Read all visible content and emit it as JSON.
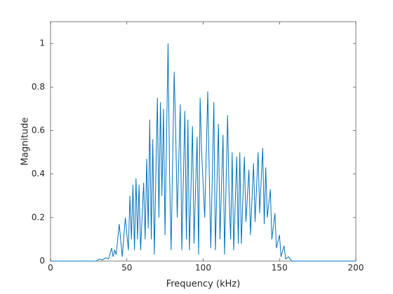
{
  "chart_data": {
    "type": "line",
    "xlabel": "Frequency (kHz)",
    "ylabel": "Magnitude",
    "x": [
      0,
      30,
      32,
      34,
      36,
      38,
      40,
      41,
      42,
      43,
      44,
      45,
      47,
      49,
      51,
      52,
      53,
      54,
      55,
      56,
      57,
      58,
      59,
      61,
      62,
      63,
      64,
      65,
      66,
      67,
      68,
      70,
      71,
      72,
      73,
      74,
      75,
      77,
      78,
      79,
      81,
      82,
      83,
      85,
      86,
      88,
      89,
      90,
      91,
      93,
      94,
      96,
      97,
      98,
      99,
      101,
      103,
      104,
      105,
      107,
      108,
      110,
      111,
      113,
      114,
      116,
      117,
      118,
      119,
      120,
      122,
      123,
      124,
      125,
      127,
      128,
      130,
      131,
      133,
      134,
      136,
      137,
      139,
      140,
      141,
      142,
      144,
      145,
      147,
      148,
      150,
      151,
      153,
      154,
      156,
      158,
      160,
      200
    ],
    "series": [
      {
        "color": "#0072bd",
        "values": [
          0,
          0,
          0.01,
          0.005,
          0.015,
          0.01,
          0.06,
          0.02,
          0.05,
          0.03,
          0.1,
          0.17,
          0.02,
          0.2,
          0.05,
          0.3,
          0.1,
          0.35,
          0.05,
          0.38,
          0.1,
          0.35,
          0.05,
          0.36,
          0.1,
          0.47,
          0.15,
          0.65,
          0.1,
          0.56,
          0.03,
          0.75,
          0.2,
          0.73,
          0.3,
          0.7,
          0.12,
          1.0,
          0.4,
          0.05,
          0.87,
          0.6,
          0.2,
          0.72,
          0.05,
          0.69,
          0.1,
          0.65,
          0.05,
          0.62,
          0.08,
          0.57,
          0.03,
          0.75,
          0.5,
          0.2,
          0.78,
          0.4,
          0.06,
          0.73,
          0.05,
          0.63,
          0.1,
          0.58,
          0.03,
          0.67,
          0.3,
          0.1,
          0.5,
          0.05,
          0.48,
          0.08,
          0.5,
          0.08,
          0.48,
          0.18,
          0.42,
          0.12,
          0.45,
          0.18,
          0.5,
          0.22,
          0.52,
          0.17,
          0.43,
          0.2,
          0.33,
          0.1,
          0.22,
          0.06,
          0.12,
          0.02,
          0.07,
          0.01,
          0.02,
          0,
          0,
          0
        ]
      }
    ],
    "xlim": [
      0,
      200
    ],
    "xticks": [
      0,
      50,
      100,
      150,
      200
    ],
    "ylim": [
      0,
      1.1
    ],
    "yticks": [
      0,
      0.2,
      0.4,
      0.6,
      0.8,
      1
    ]
  }
}
